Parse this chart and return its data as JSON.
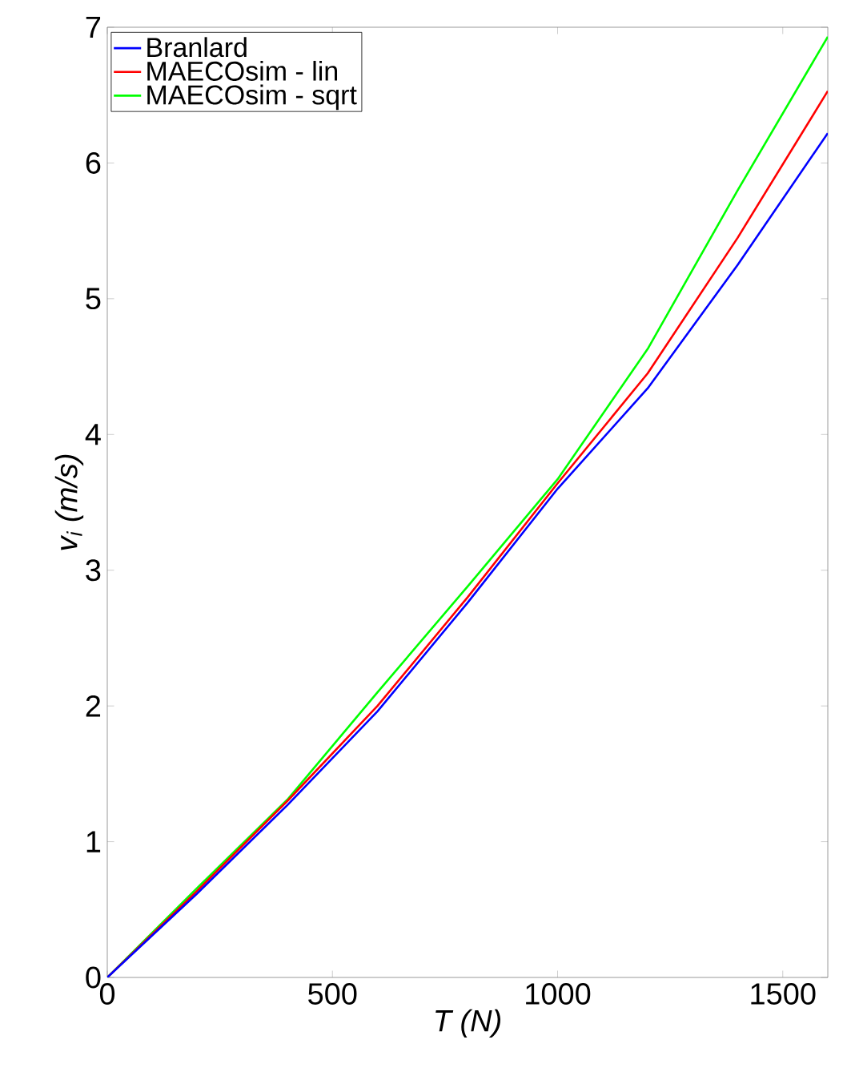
{
  "chart_data": {
    "type": "line",
    "xlabel": "T (N)",
    "ylabel": "v$_{i}$ (m/s)",
    "x": [
      0,
      200,
      400,
      600,
      800,
      1000,
      1200,
      1400,
      1600
    ],
    "series": [
      {
        "name": "Branlard",
        "color": "#0000ff",
        "values": [
          0,
          0.62,
          1.27,
          1.96,
          2.76,
          3.6,
          4.34,
          5.25,
          6.22
        ]
      },
      {
        "name": "MAECOsim - lin",
        "color": "#ff0000",
        "values": [
          0,
          0.64,
          1.3,
          2.0,
          2.8,
          3.64,
          4.45,
          5.45,
          6.53
        ]
      },
      {
        "name": "MAECOsim - sqrt",
        "color": "#00ff00",
        "values": [
          0,
          0.66,
          1.31,
          2.1,
          2.88,
          3.67,
          4.63,
          5.8,
          6.93
        ]
      }
    ],
    "xlim": [
      0,
      1600
    ],
    "ylim": [
      0,
      7
    ],
    "xticks": [
      0,
      500,
      1000,
      1500
    ],
    "yticks": [
      0,
      1,
      2,
      3,
      4,
      5,
      6,
      7
    ],
    "grid": false,
    "legend": "top left",
    "marker": "none",
    "line_style": "solid"
  }
}
